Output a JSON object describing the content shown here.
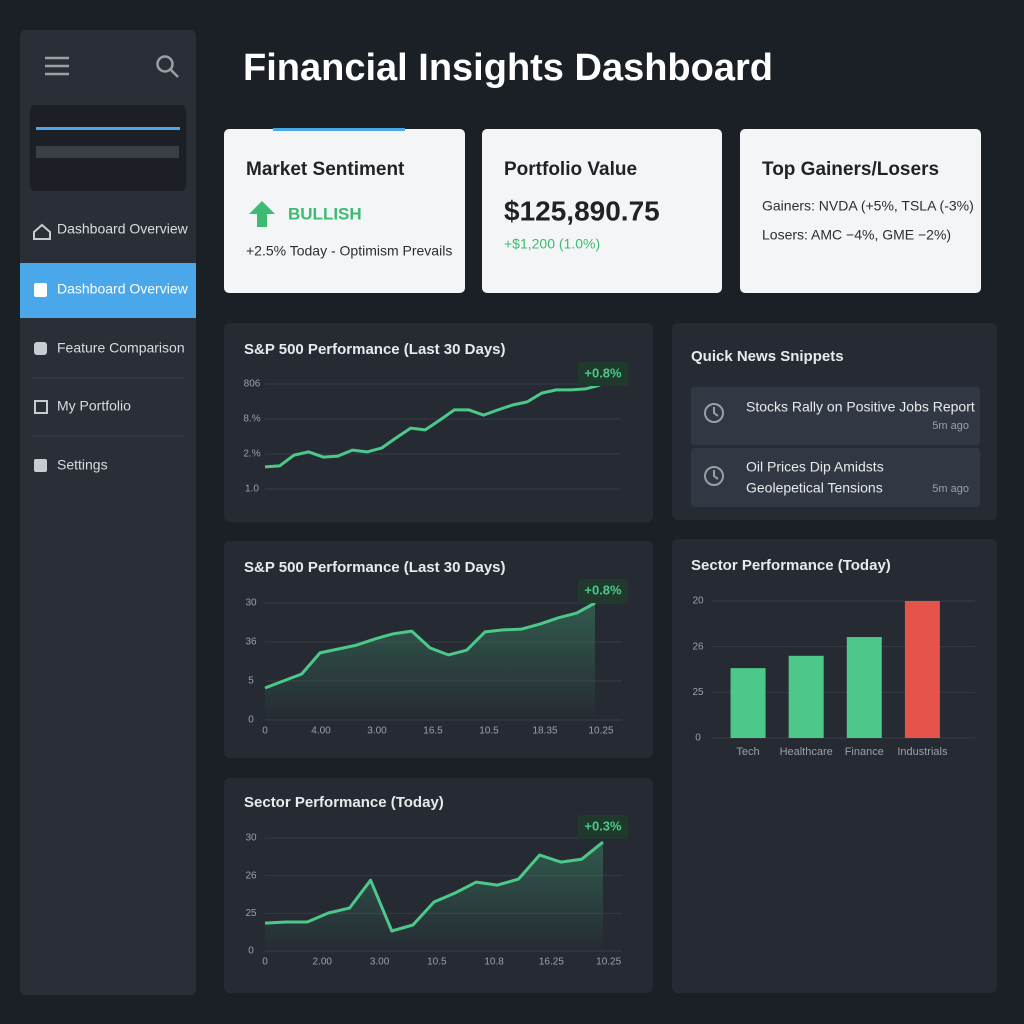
{
  "header": {
    "title": "Financial Insights Dashboard"
  },
  "sidebar": {
    "nav": [
      "Dashboard Overview",
      "Dashboard Overview",
      "Feature Comparison",
      "My Portfolio",
      "Settings"
    ]
  },
  "cards": [
    {
      "title": "Market Sentiment",
      "status": "BULLISH",
      "note": "+2.5% Today - Optimism Prevails"
    },
    {
      "title": "Portfolio Value",
      "value": "$125,890.75",
      "change": "+$1,200 (1.0%)"
    },
    {
      "title": "Top Gainers/Losers",
      "gainers": "Gainers: NVDA (+5%, TSLA (-3%)",
      "losers": "Losers: AMC −4%, GME −2%)"
    }
  ],
  "news": {
    "title": "Quick News Snippets",
    "items": [
      {
        "lines": [
          "Stocks Rally on Positive Jobs Report"
        ],
        "time": "5m ago"
      },
      {
        "lines": [
          "Oil Prices Dip Amidsts",
          "Geolepetical Tensions"
        ],
        "time": "5m ago"
      }
    ]
  },
  "chart_data": [
    {
      "type": "line",
      "title": "S&P 500 Performance (Last 30 Days)",
      "badge": "+0.8%",
      "color": "#4cc98a",
      "grid": true,
      "ylim": [
        0,
        3
      ],
      "yticks": [
        {
          "value": 0,
          "label": "1.0"
        },
        {
          "value": 1,
          "label": "2.%"
        },
        {
          "value": 2,
          "label": "8.%"
        },
        {
          "value": 3,
          "label": "806"
        }
      ],
      "values": [
        0.63,
        0.66,
        0.97,
        1.06,
        0.91,
        0.94,
        1.11,
        1.06,
        1.17,
        1.46,
        1.74,
        1.69,
        1.97,
        2.26,
        2.26,
        2.11,
        2.26,
        2.4,
        2.49,
        2.74,
        2.83,
        2.83,
        2.86,
        2.97
      ]
    },
    {
      "type": "line",
      "title": "S&P 500 Performance (Last 30 Days)",
      "badge": "+0.8%",
      "color": "#4cc98a",
      "grid": true,
      "area": true,
      "ylim": [
        0,
        3
      ],
      "yticks": [
        {
          "value": 0,
          "label": "0"
        },
        {
          "value": 1,
          "label": "5"
        },
        {
          "value": 2,
          "label": "36"
        },
        {
          "value": 3,
          "label": "30"
        }
      ],
      "x_labels": [
        "0",
        "4.00",
        "3.00",
        "16.5",
        "10.5",
        "18.35",
        "10.25"
      ],
      "values": [
        0.82,
        1.0,
        1.18,
        1.72,
        1.82,
        1.92,
        2.08,
        2.21,
        2.28,
        1.85,
        1.67,
        1.79,
        2.26,
        2.31,
        2.33,
        2.46,
        2.62,
        2.74,
        3.0
      ]
    },
    {
      "type": "line",
      "title": "Sector Performance (Today)",
      "badge": "+0.3%",
      "color": "#4cc98a",
      "grid": true,
      "area": true,
      "ylim": [
        0,
        3
      ],
      "yticks": [
        {
          "value": 0,
          "label": "0"
        },
        {
          "value": 1,
          "label": "25"
        },
        {
          "value": 2,
          "label": "26"
        },
        {
          "value": 3,
          "label": "30"
        }
      ],
      "x_labels": [
        "0",
        "2.00",
        "3.00",
        "10.5",
        "10.8",
        "16.25",
        "10.25"
      ],
      "values": [
        0.74,
        0.77,
        0.77,
        1.01,
        1.14,
        1.88,
        0.53,
        0.69,
        1.3,
        1.54,
        1.83,
        1.75,
        1.91,
        2.55,
        2.36,
        2.44,
        2.89
      ]
    },
    {
      "type": "bar",
      "title": "Sector Performance (Today)",
      "grid": true,
      "ylim": [
        0,
        3
      ],
      "yticks": [
        {
          "value": 0,
          "label": "0"
        },
        {
          "value": 1,
          "label": "25"
        },
        {
          "value": 2,
          "label": "26"
        },
        {
          "value": 3,
          "label": "20"
        }
      ],
      "categories": [
        "Tech",
        "Healthcare",
        "Finance",
        "Industrials"
      ],
      "values": [
        1.53,
        1.8,
        2.21,
        3.0
      ],
      "colors": [
        "#4cc98a",
        "#4cc98a",
        "#4cc98a",
        "#e5534b"
      ]
    }
  ]
}
